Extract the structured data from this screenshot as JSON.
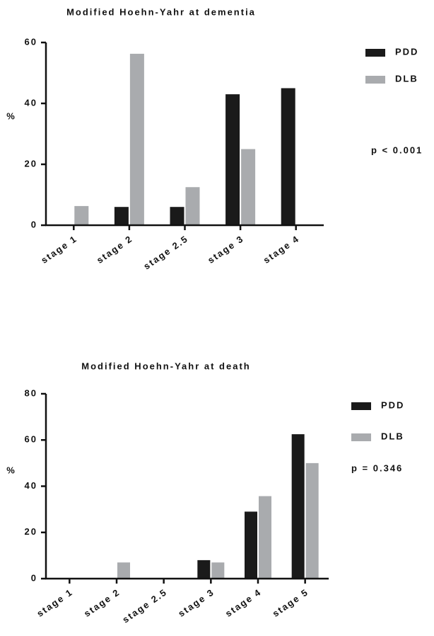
{
  "chart_data": [
    {
      "type": "bar",
      "title": "Modified Hoehn-Yahr at dementia",
      "ylabel": "%",
      "annotation": "p < 0.001",
      "categories": [
        "stage 1",
        "stage 2",
        "stage 2.5",
        "stage 3",
        "stage 4"
      ],
      "series": [
        {
          "name": "PDD",
          "color": "#1a1a1a",
          "values": [
            0,
            6,
            6,
            43,
            45
          ]
        },
        {
          "name": "DLB",
          "color": "#a9abae",
          "values": [
            6.3,
            56.3,
            12.5,
            25,
            0
          ]
        }
      ],
      "ylim": [
        0,
        60
      ],
      "yticks": [
        0,
        20,
        40,
        60
      ]
    },
    {
      "type": "bar",
      "title": "Modified Hoehn-Yahr at death",
      "ylabel": "%",
      "annotation": "p = 0.346",
      "categories": [
        "stage 1",
        "stage 2",
        "stage 2.5",
        "stage 3",
        "stage 4",
        "stage 5"
      ],
      "series": [
        {
          "name": "PDD",
          "color": "#1a1a1a",
          "values": [
            0,
            0,
            0,
            8,
            29,
            62.5
          ]
        },
        {
          "name": "DLB",
          "color": "#a9abae",
          "values": [
            0,
            7,
            0,
            7,
            35.7,
            50
          ]
        }
      ],
      "ylim": [
        0,
        80
      ],
      "yticks": [
        0,
        20,
        40,
        60,
        80
      ]
    }
  ]
}
